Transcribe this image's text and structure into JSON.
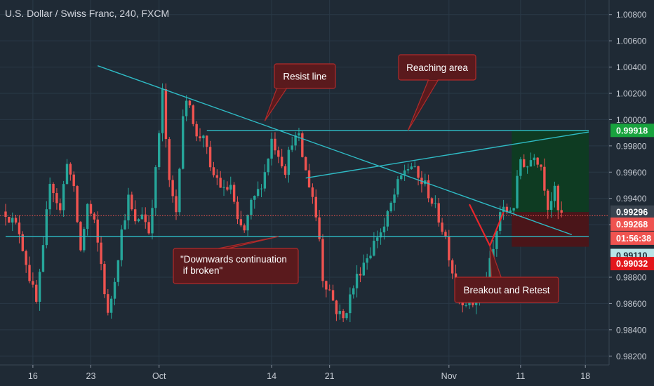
{
  "chart_title": "U.S. Dollar / Swiss Franc, 240, FXCM",
  "colors": {
    "background": "#1f2a35",
    "grid": "#2a3947",
    "bull": "#26a69a",
    "bear": "#ef5350",
    "trendline": "#2fbcc6",
    "annotation_fill": "#5a1a1d",
    "annotation_border": "#b02b2b",
    "target_zone": "#0e3b22",
    "stop_zone": "#4a1519",
    "pattern": "#e8262b"
  },
  "chart_data": {
    "type": "candlestick",
    "title": "U.S. Dollar / Swiss Franc, 240, FXCM",
    "symbol": "USDCHF",
    "timeframe": "240",
    "ylim": [
      0.981,
      1.009
    ],
    "y_ticks": [
      "1.00800",
      "1.00600",
      "1.00400",
      "1.00200",
      "1.00000",
      "0.99800",
      "0.99600",
      "0.99400",
      "0.99200",
      "0.98800",
      "0.98600",
      "0.98400",
      "0.98200"
    ],
    "x_ticks": [
      "16",
      "23",
      "Oct",
      "14",
      "21",
      "Nov",
      "11",
      "18"
    ],
    "x_tick_index": [
      8,
      25,
      45,
      78,
      95,
      130,
      151,
      170
    ],
    "anchors": [
      [
        0,
        0.993
      ],
      [
        4,
        0.9915
      ],
      [
        7,
        0.988
      ],
      [
        9,
        0.986
      ],
      [
        11,
        0.99
      ],
      [
        13,
        0.9955
      ],
      [
        16,
        0.993
      ],
      [
        18,
        0.997
      ],
      [
        20,
        0.9945
      ],
      [
        22,
        0.99
      ],
      [
        24,
        0.9935
      ],
      [
        26,
        0.992
      ],
      [
        28,
        0.989
      ],
      [
        30,
        0.985
      ],
      [
        32,
        0.988
      ],
      [
        34,
        0.9915
      ],
      [
        36,
        0.994
      ],
      [
        38,
        0.992
      ],
      [
        40,
        0.993
      ],
      [
        42,
        0.9915
      ],
      [
        44,
        0.996
      ],
      [
        46,
        1.002
      ],
      [
        48,
        0.995
      ],
      [
        50,
        0.993
      ],
      [
        52,
        1.0005
      ],
      [
        54,
        1.0015
      ],
      [
        56,
        0.9985
      ],
      [
        58,
        0.999
      ],
      [
        60,
        0.996
      ],
      [
        62,
        0.9955
      ],
      [
        64,
        0.9945
      ],
      [
        66,
        0.995
      ],
      [
        68,
        0.992
      ],
      [
        70,
        0.9915
      ],
      [
        72,
        0.9935
      ],
      [
        74,
        0.9945
      ],
      [
        76,
        0.996
      ],
      [
        78,
        0.9985
      ],
      [
        80,
        0.9975
      ],
      [
        82,
        0.9962
      ],
      [
        84,
        0.9985
      ],
      [
        86,
        0.9985
      ],
      [
        88,
        0.996
      ],
      [
        90,
        0.9942
      ],
      [
        92,
        0.991
      ],
      [
        93,
        0.988
      ],
      [
        95,
        0.987
      ],
      [
        97,
        0.9855
      ],
      [
        99,
        0.9848
      ],
      [
        101,
        0.9865
      ],
      [
        103,
        0.988
      ],
      [
        105,
        0.9892
      ],
      [
        107,
        0.99
      ],
      [
        109,
        0.9912
      ],
      [
        111,
        0.9918
      ],
      [
        113,
        0.9935
      ],
      [
        115,
        0.995
      ],
      [
        117,
        0.9962
      ],
      [
        119,
        0.9965
      ],
      [
        121,
        0.9955
      ],
      [
        123,
        0.995
      ],
      [
        125,
        0.9938
      ],
      [
        127,
        0.9925
      ],
      [
        129,
        0.991
      ],
      [
        131,
        0.9885
      ],
      [
        133,
        0.9865
      ],
      [
        135,
        0.9862
      ],
      [
        137,
        0.986
      ],
      [
        139,
        0.987
      ],
      [
        141,
        0.988
      ],
      [
        143,
        0.99
      ],
      [
        145,
        0.993
      ],
      [
        147,
        0.993
      ],
      [
        149,
        0.9935
      ],
      [
        151,
        0.997
      ],
      [
        153,
        0.9965
      ],
      [
        155,
        0.9975
      ],
      [
        157,
        0.9965
      ],
      [
        159,
        0.9935
      ],
      [
        161,
        0.9945
      ],
      [
        162,
        0.993
      ],
      [
        163,
        0.9927
      ]
    ],
    "levels": {
      "last_price": 0.99268,
      "target": 0.99918,
      "entry": 0.99296,
      "support": 0.9911,
      "stop": 0.99032,
      "resistance": 0.99918
    },
    "price_labels": [
      {
        "text": "0.99918",
        "value": 0.99918,
        "kind": "target"
      },
      {
        "text": "0.99296",
        "value": 0.99296,
        "kind": "entry"
      },
      {
        "text": "0.99268",
        "value": 0.99268,
        "kind": "last"
      },
      {
        "text": "01:56:38",
        "value": 0.9915,
        "kind": "countdown"
      },
      {
        "text": "0.99110",
        "value": 0.9911,
        "kind": "support"
      },
      {
        "text": "0.99032",
        "value": 0.99032,
        "kind": "stop"
      }
    ],
    "trendlines": [
      {
        "name": "descending resistance",
        "from": [
          27,
          1.0041
        ],
        "to": [
          166,
          0.99124
        ]
      },
      {
        "name": "ascending",
        "from": [
          88,
          0.99555
        ],
        "to": [
          171,
          0.99906
        ]
      },
      {
        "name": "horizontal resistance",
        "from": [
          59,
          0.99918
        ],
        "to": [
          171,
          0.99918
        ]
      },
      {
        "name": "horizontal support",
        "from": [
          0,
          0.9911
        ],
        "to": [
          171,
          0.9911
        ]
      }
    ],
    "position_zone": {
      "from_index": 148,
      "to_index": 171,
      "target": 0.99918,
      "entry": 0.99296,
      "stop": 0.99032
    },
    "retest_pattern": {
      "points": [
        [
          136,
          0.99355
        ],
        [
          142,
          0.9904
        ],
        [
          146,
          0.99296
        ]
      ]
    },
    "annotations": [
      {
        "text": "Resist line",
        "points_to": [
          76,
          0.9999
        ]
      },
      {
        "text": "Reaching area",
        "points_to": [
          118,
          0.99918
        ]
      },
      {
        "text": "\"Downwards continuation\n if broken\"",
        "points_to": [
          80,
          0.9911
        ]
      },
      {
        "text": "Breakout and Retest",
        "points_to": [
          142,
          0.9904
        ]
      }
    ]
  }
}
